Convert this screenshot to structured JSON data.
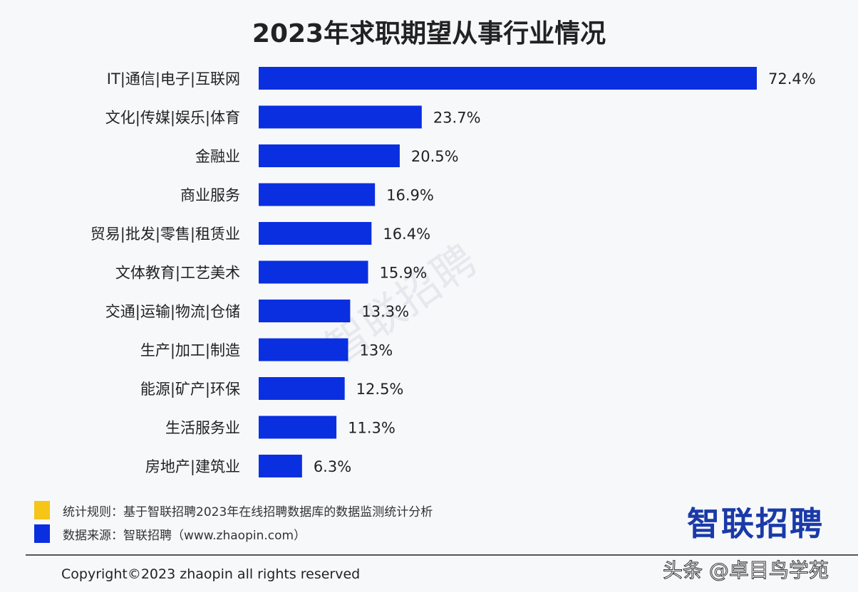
{
  "chart_data": {
    "type": "bar",
    "orientation": "horizontal",
    "title": "2023年求职期望从事行业情况",
    "categories": [
      "IT|通信|电子|互联网",
      "文化|传媒|娱乐|体育",
      "金融业",
      "商业服务",
      "贸易|批发|零售|租赁业",
      "文体教育|工艺美术",
      "交通|运输|物流|仓储",
      "生产|加工|制造",
      "能源|矿产|环保",
      "生活服务业",
      "房地产|建筑业"
    ],
    "values": [
      72.4,
      23.7,
      20.5,
      16.9,
      16.4,
      15.9,
      13.3,
      13,
      12.5,
      11.3,
      6.3
    ],
    "value_labels": [
      "72.4%",
      "23.7%",
      "20.5%",
      "16.9%",
      "16.4%",
      "15.9%",
      "13.3%",
      "13%",
      "12.5%",
      "11.3%",
      "6.3%"
    ],
    "unit": "%",
    "bar_color": "#0a2fe0",
    "grid": false,
    "xlim": [
      0,
      72.4
    ]
  },
  "watermark": "智联招聘",
  "legend": [
    {
      "color": "#f5c518",
      "text": "统计规则：基于智联招聘2023年在线招聘数据库的数据监测统计分析"
    },
    {
      "color": "#0a2fe0",
      "text": "数据来源：智联招聘（www.zhaopin.com）"
    }
  ],
  "copyright": "Copyright©2023 zhaopin all rights reserved",
  "logo": "智联招聘",
  "credit": "头条 @卓目鸟学苑"
}
